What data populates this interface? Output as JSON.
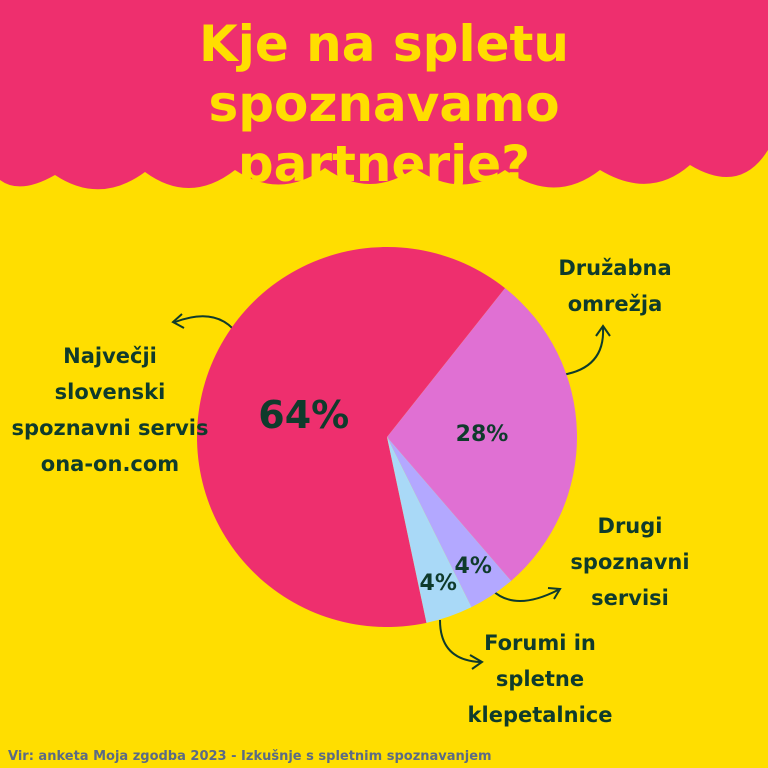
{
  "chart_data": {
    "type": "pie",
    "title": "Kje na spletu spoznavamo partnerje?",
    "categories": [
      "Največji slovenski spoznavni servis ona-on.com",
      "Družabna omrežja",
      "Drugi spoznavni servisi",
      "Forumi in spletne klepetalnice"
    ],
    "values": [
      64,
      28,
      4,
      4
    ],
    "value_labels": [
      "64%",
      "28%",
      "4%",
      "4%"
    ],
    "colors": [
      "#ee2f6e",
      "#e070d3",
      "#b3a8ff",
      "#a9d9f7"
    ],
    "source": "Vir: anketa Moja zgodba 2023 - Izkušnje s spletnim spoznavanjem"
  }
}
